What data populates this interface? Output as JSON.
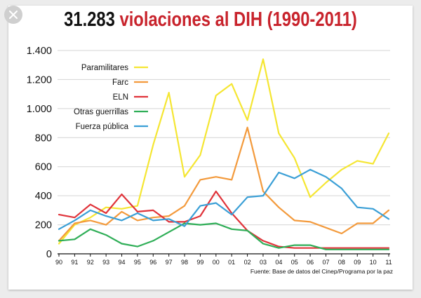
{
  "title": {
    "number": "31.283",
    "text": "violaciones al DIH (1990-2011)"
  },
  "close_icon": "close-icon",
  "colors": {
    "title_number": "#111111",
    "title_text": "#c8232c",
    "paramilitares": "#f5e632",
    "farc": "#f39a3c",
    "eln": "#e0333a",
    "otras": "#2fae57",
    "fuerza": "#3a9fd6"
  },
  "chart_data": {
    "type": "line",
    "title": "31.283 violaciones al DIH (1990-2011)",
    "xlabel": "",
    "ylabel": "",
    "categories": [
      "90",
      "91",
      "92",
      "93",
      "94",
      "95",
      "96",
      "97",
      "98",
      "99",
      "00",
      "01",
      "02",
      "03",
      "04",
      "05",
      "06",
      "07",
      "08",
      "09",
      "10",
      "11"
    ],
    "ylim": [
      0,
      1400
    ],
    "yticks": [
      0,
      200,
      400,
      600,
      800,
      1000,
      1200,
      1400
    ],
    "ytick_labels": [
      "0",
      "200",
      "400",
      "600",
      "800",
      "1.000",
      "1.200",
      "1.400"
    ],
    "grid": true,
    "legend_position": "top-left",
    "source": "Fuente: Base de datos del Cinep/Programa por la paz",
    "series": [
      {
        "name": "Paramilitares",
        "color": "#f5e632",
        "values": [
          70,
          200,
          250,
          320,
          310,
          330,
          750,
          1110,
          530,
          680,
          1090,
          1170,
          920,
          1340,
          830,
          660,
          390,
          490,
          580,
          640,
          620,
          830
        ]
      },
      {
        "name": "Farc",
        "color": "#f39a3c",
        "values": [
          90,
          210,
          230,
          200,
          290,
          230,
          250,
          260,
          330,
          510,
          530,
          510,
          870,
          430,
          320,
          230,
          220,
          180,
          140,
          210,
          210,
          300
        ]
      },
      {
        "name": "ELN",
        "color": "#e0333a",
        "values": [
          270,
          250,
          340,
          280,
          410,
          290,
          300,
          220,
          220,
          260,
          430,
          280,
          160,
          90,
          50,
          40,
          40,
          40,
          40,
          40,
          40,
          40
        ]
      },
      {
        "name": "Otras guerrillas",
        "color": "#2fae57",
        "values": [
          90,
          100,
          170,
          130,
          70,
          50,
          90,
          150,
          210,
          200,
          210,
          170,
          160,
          70,
          40,
          60,
          60,
          30,
          30,
          30,
          30,
          30
        ]
      },
      {
        "name": "Fuerza pública",
        "color": "#3a9fd6",
        "values": [
          170,
          230,
          300,
          260,
          230,
          280,
          230,
          240,
          190,
          330,
          350,
          270,
          390,
          400,
          560,
          520,
          580,
          530,
          450,
          320,
          310,
          240
        ]
      }
    ]
  }
}
